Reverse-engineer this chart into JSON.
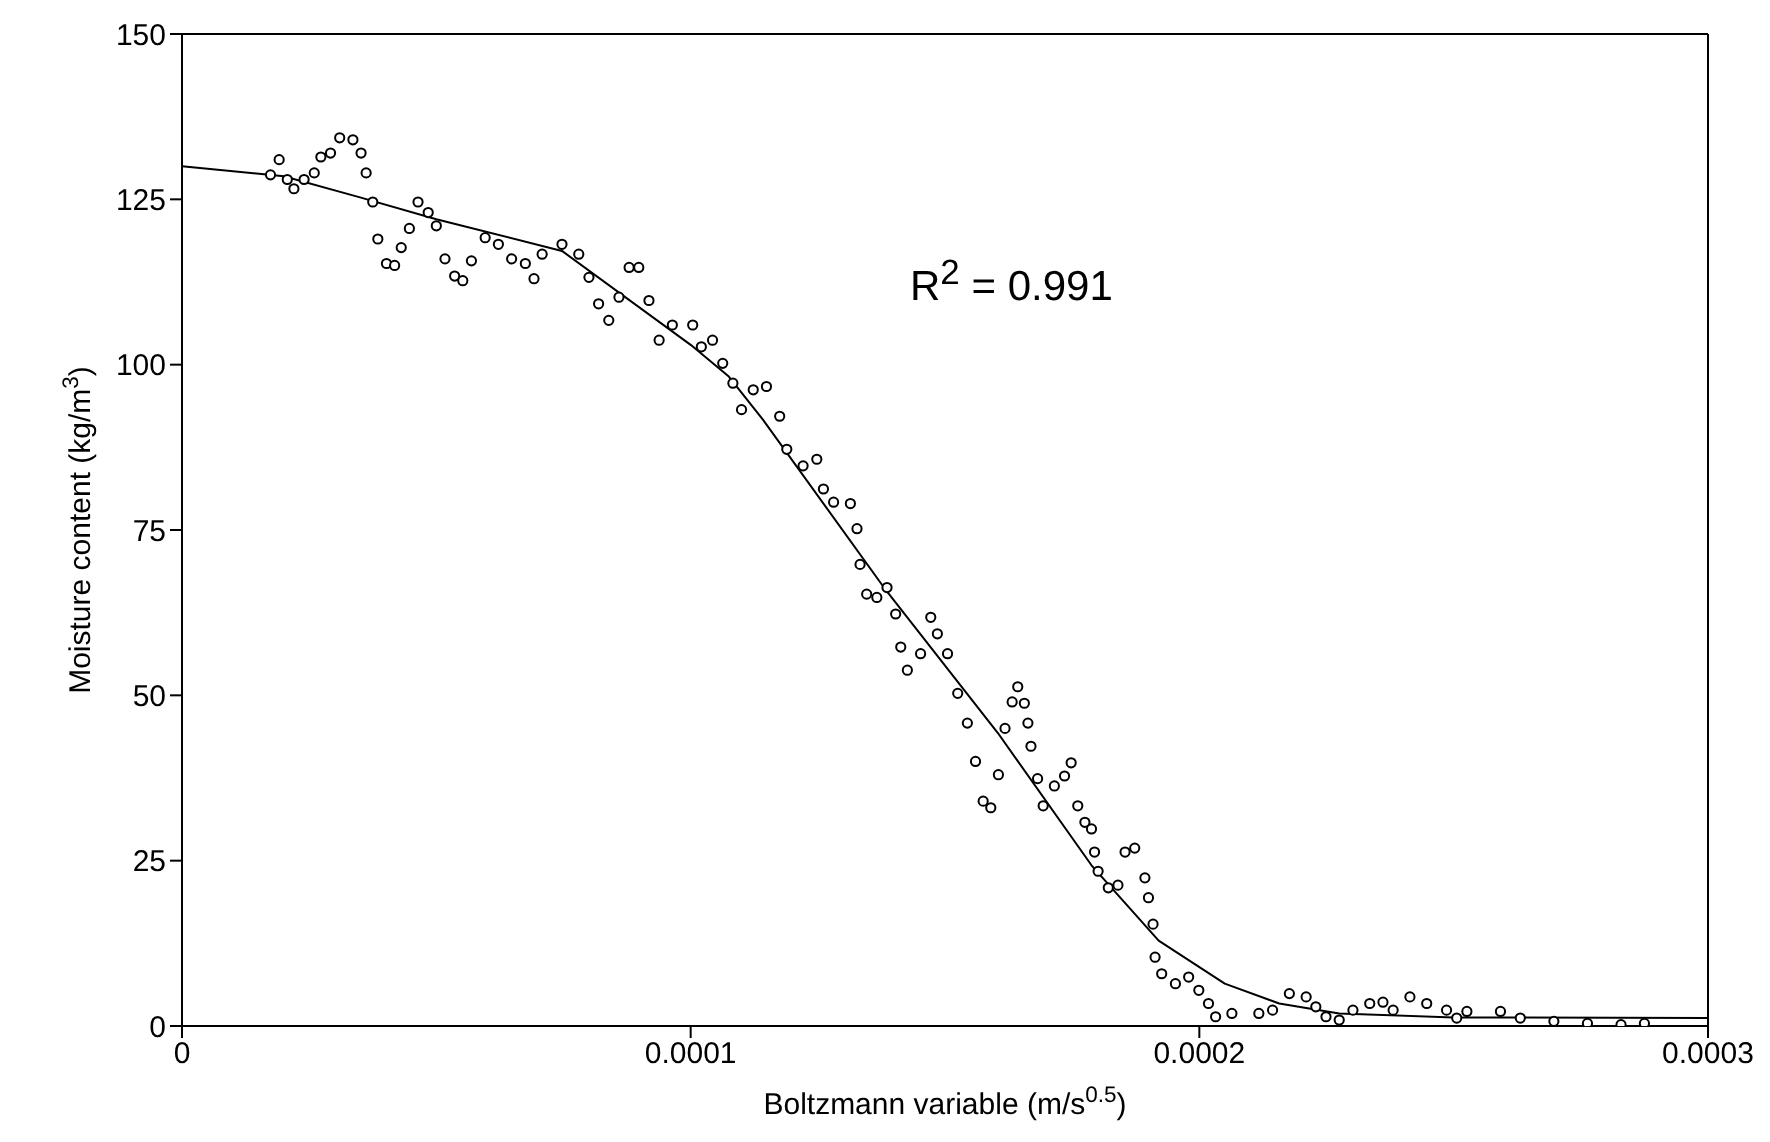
{
  "chart_data": {
    "type": "scatter",
    "xlabel": "Boltzmann variable (m/s$^{0.5}$)",
    "ylabel": "Moisture content (kg/m$^{3}$)",
    "xlim": [
      0,
      0.0003
    ],
    "xticks": [
      0,
      0.0001,
      0.0002,
      0.0003
    ],
    "ylim": [
      0,
      150
    ],
    "yticks": [
      0,
      25,
      50,
      75,
      100,
      125,
      150
    ],
    "marker": "circle",
    "annotations": [
      "R$^{2}$ = 0.991"
    ],
    "series": [
      {
        "color": "#000000",
        "x": [
          1.74e-05,
          1.91e-05,
          2.07e-05,
          2.2e-05,
          2.4e-05,
          2.6e-05,
          2.73e-05,
          2.92e-05,
          3.1e-05,
          3.36e-05,
          3.52e-05,
          3.62e-05,
          3.75e-05,
          3.85e-05,
          4.02e-05,
          4.18e-05,
          4.31e-05,
          4.47e-05,
          4.64e-05,
          4.84e-05,
          5e-05,
          5.17e-05,
          5.36e-05,
          5.52e-05,
          5.69e-05,
          5.96e-05,
          6.22e-05,
          6.48e-05,
          6.75e-05,
          6.92e-05,
          7.08e-05,
          7.47e-05,
          7.8e-05,
          8e-05,
          8.19e-05,
          8.39e-05,
          8.59e-05,
          8.79e-05,
          8.98e-05,
          9.18e-05,
          9.38e-05,
          9.64e-05,
          0.0001004,
          0.0001021,
          0.0001043,
          0.0001063,
          0.0001083,
          0.00011,
          0.0001123,
          0.0001149,
          0.0001175,
          0.0001189,
          0.0001221,
          0.0001248,
          0.0001261,
          0.0001281,
          0.0001314,
          0.0001327,
          0.0001333,
          0.0001346,
          0.0001366,
          0.0001386,
          0.0001403,
          0.0001413,
          0.0001426,
          0.0001452,
          0.0001472,
          0.0001485,
          0.0001505,
          0.0001525,
          0.0001544,
          0.000156,
          0.0001575,
          0.000159,
          0.0001605,
          0.0001618,
          0.0001632,
          0.0001643,
          0.0001656,
          0.0001663,
          0.0001669,
          0.0001682,
          0.0001693,
          0.0001715,
          0.0001735,
          0.0001748,
          0.0001761,
          0.0001775,
          0.0001788,
          0.0001794,
          0.0001801,
          0.0001821,
          0.000184,
          0.0001854,
          0.0001873,
          0.0001893,
          0.00019,
          0.0001909,
          0.0001913,
          0.0001926,
          0.0001953,
          0.0001979,
          0.0001999,
          0.0002018,
          0.0002032,
          0.0002064,
          0.0002117,
          0.0002144,
          0.0002177,
          0.000221,
          0.0002229,
          0.0002249,
          0.0002275,
          0.0002302,
          0.0002335,
          0.0002361,
          0.0002381,
          0.0002414,
          0.0002447,
          0.0002486,
          0.0002506,
          0.0002526,
          0.0002592,
          0.0002631,
          0.0002697,
          0.0002763,
          0.0002829,
          0.0002875
        ],
        "values": [
          128.7,
          131,
          128,
          126.6,
          128,
          129,
          131.4,
          132,
          134.3,
          134,
          132,
          129,
          124.6,
          119,
          115.3,
          115,
          117.7,
          120.6,
          124.6,
          123,
          121,
          116,
          113.4,
          112.7,
          115.7,
          119.2,
          118.2,
          116,
          115.3,
          113,
          116.7,
          118.2,
          116.7,
          113.2,
          109.2,
          106.7,
          110.2,
          114.7,
          114.7,
          109.7,
          103.7,
          106,
          106,
          102.7,
          103.7,
          100.2,
          97.2,
          93.2,
          96.2,
          96.7,
          92.2,
          87.2,
          84.7,
          85.7,
          81.2,
          79.2,
          79,
          75.2,
          69.8,
          65.3,
          64.8,
          66.3,
          62.3,
          57.3,
          53.8,
          56.3,
          61.8,
          59.3,
          56.3,
          50.3,
          45.8,
          40,
          34,
          33,
          38,
          45,
          49,
          51.3,
          48.8,
          45.8,
          42.3,
          37.4,
          33.3,
          36.3,
          37.8,
          39.8,
          33.3,
          30.8,
          29.8,
          26.3,
          23.4,
          20.9,
          21.3,
          26.3,
          26.9,
          22.4,
          19.4,
          15.4,
          10.4,
          7.9,
          6.4,
          7.4,
          5.4,
          3.4,
          1.4,
          1.9,
          1.9,
          2.4,
          4.9,
          4.4,
          2.9,
          1.4,
          0.9,
          2.4,
          3.4,
          3.6,
          2.4,
          4.4,
          3.4,
          2.4,
          1.2,
          2.2,
          2.2,
          1.2,
          0.7,
          0.4,
          0.2,
          0.4
        ]
      },
      {
        "type": "line",
        "color": "#000000",
        "marker": "none",
        "x": [
          0,
          2e-05,
          3.5e-05,
          5e-05,
          7.47e-05,
          0.0001,
          0.0001075,
          0.0001142,
          0.000138,
          0.0001604,
          0.0001788,
          0.000192,
          0.000205,
          0.0002157,
          0.0002275,
          0.00025,
          0.0003
        ],
        "values": [
          130,
          128.5,
          125.3,
          122,
          117.2,
          103,
          98.2,
          91.7,
          66.3,
          44.3,
          24.3,
          12.9,
          6.4,
          3.4,
          1.9,
          1.3,
          1.2
        ]
      }
    ]
  }
}
